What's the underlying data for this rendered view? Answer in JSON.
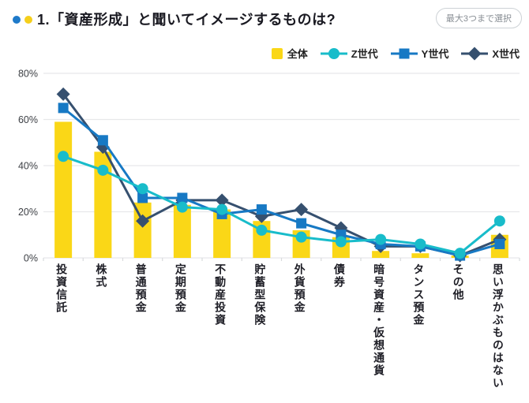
{
  "header": {
    "title": "1.「資産形成」と聞いてイメージするものは?",
    "badge": "最大3つまで選択",
    "bullet_colors": [
      "#1e7ac9",
      "#f5cf1b"
    ]
  },
  "chart_data": {
    "type": "combo-bar-line",
    "title": "「資産形成」と聞いてイメージするものは?",
    "categories": [
      "投資信託",
      "株式",
      "普通預金",
      "定期預金",
      "不動産投資",
      "貯蓄型保険",
      "外貨預金",
      "債券",
      "暗号資産・仮想通貨",
      "タンス預金",
      "その他",
      "思い浮かぶものはない"
    ],
    "series": [
      {
        "name": "全体",
        "type": "bar",
        "marker": "square-swatch",
        "color": "#fad717",
        "values": [
          59,
          46,
          24,
          23,
          21,
          16,
          12,
          9,
          3,
          2,
          1,
          10
        ]
      },
      {
        "name": "Z世代",
        "type": "line",
        "marker": "circle",
        "color": "#18bcca",
        "values": [
          44,
          38,
          30,
          22,
          21,
          12,
          9,
          7,
          8,
          6,
          2,
          16
        ]
      },
      {
        "name": "Y世代",
        "type": "line",
        "marker": "square",
        "color": "#1779c4",
        "values": [
          65,
          51,
          26,
          26,
          19,
          21,
          15,
          10,
          6,
          5,
          1,
          6
        ]
      },
      {
        "name": "X世代",
        "type": "line",
        "marker": "diamond",
        "color": "#36506f",
        "values": [
          71,
          48,
          16,
          25,
          25,
          18,
          21,
          13,
          5,
          5,
          1,
          8
        ]
      }
    ],
    "ylim": [
      0,
      80
    ],
    "ytick_values": [
      0,
      20,
      40,
      60,
      80
    ],
    "ytick_labels": [
      "0%",
      "20%",
      "40%",
      "60%",
      "80%"
    ],
    "grid": "horizontal",
    "gridline_color": "#e7e8ea",
    "legend_position": "top-right",
    "unit": "%"
  }
}
